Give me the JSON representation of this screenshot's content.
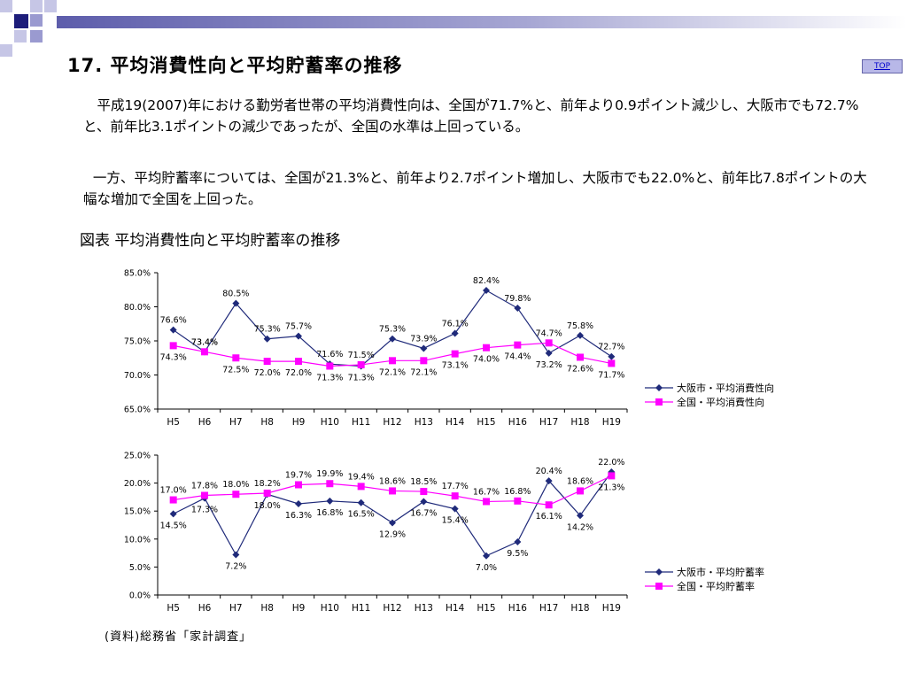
{
  "title": "17. 平均消費性向と平均貯蓄率の推移",
  "top_link": "TOP",
  "paragraph1": "平成19(2007)年における勤労者世帯の平均消費性向は、全国が71.7%と、前年より0.9ポイント減少し、大阪市でも72.7%と、前年比3.1ポイントの減少であったが、全国の水準は上回っている。",
  "paragraph2": "一方、平均貯蓄率については、全国が21.3%と、前年より2.7ポイント増加し、大阪市でも22.0%と、前年比7.8ポイントの大幅な増加で全国を上回った。",
  "figure_title": "図表 平均消費性向と平均貯蓄率の推移",
  "source": "(資料)総務省「家計調査」",
  "colors": {
    "osaka": "#1f2a7a",
    "national": "#ff00ff",
    "deco_dark": "#1d1d7a",
    "deco_light": "#9a9ad0"
  },
  "chart_data": [
    {
      "type": "line",
      "categories": [
        "H5",
        "H6",
        "H7",
        "H8",
        "H9",
        "H10",
        "H11",
        "H12",
        "H13",
        "H14",
        "H15",
        "H16",
        "H17",
        "H18",
        "H19"
      ],
      "y_tick_labels": [
        "65.0%",
        "70.0%",
        "75.0%",
        "80.0%",
        "85.0%"
      ],
      "ylim": [
        65,
        85
      ],
      "grid": false,
      "legend_position": "right",
      "series": [
        {
          "name": "大阪市・平均消費性向",
          "marker": "diamond",
          "values": [
            76.6,
            73.4,
            80.5,
            75.3,
            75.7,
            71.6,
            71.3,
            75.3,
            73.9,
            76.1,
            82.4,
            79.8,
            73.2,
            75.8,
            72.7
          ],
          "labels": [
            "76.6%",
            "73.4%",
            "80.5%",
            "75.3%",
            "75.7%",
            "71.6%",
            "71.3%",
            "75.3%",
            "73.9%",
            "76.1%",
            "82.4%",
            "79.8%",
            "73.2%",
            "75.8%",
            "72.7%"
          ]
        },
        {
          "name": "全国・平均消費性向",
          "marker": "square",
          "values": [
            74.3,
            73.4,
            72.5,
            72.0,
            72.0,
            71.3,
            71.5,
            72.1,
            72.1,
            73.1,
            74.0,
            74.4,
            74.7,
            72.6,
            71.7
          ],
          "labels": [
            "74.3%",
            "73.4%",
            "72.5%",
            "72.0%",
            "72.0%",
            "71.3%",
            "71.5%",
            "72.1%",
            "72.1%",
            "73.1%",
            "74.0%",
            "74.4%",
            "74.7%",
            "72.6%",
            "71.7%"
          ]
        }
      ]
    },
    {
      "type": "line",
      "categories": [
        "H5",
        "H6",
        "H7",
        "H8",
        "H9",
        "H10",
        "H11",
        "H12",
        "H13",
        "H14",
        "H15",
        "H16",
        "H17",
        "H18",
        "H19"
      ],
      "y_tick_labels": [
        "0.0%",
        "5.0%",
        "10.0%",
        "15.0%",
        "20.0%",
        "25.0%"
      ],
      "ylim": [
        0,
        25
      ],
      "grid": false,
      "legend_position": "right",
      "series": [
        {
          "name": "大阪市・平均貯蓄率",
          "marker": "diamond",
          "values": [
            14.5,
            17.3,
            7.2,
            18.0,
            16.3,
            16.8,
            16.5,
            12.9,
            16.7,
            15.4,
            7.0,
            9.5,
            20.4,
            14.2,
            22.0
          ],
          "labels": [
            "14.5%",
            "17.3%",
            "7.2%",
            "18.0%",
            "16.3%",
            "16.8%",
            "16.5%",
            "12.9%",
            "16.7%",
            "15.4%",
            "7.0%",
            "9.5%",
            "20.4%",
            "14.2%",
            "22.0%"
          ]
        },
        {
          "name": "全国・平均貯蓄率",
          "marker": "square",
          "values": [
            17.0,
            17.8,
            18.0,
            18.2,
            19.7,
            19.9,
            19.4,
            18.6,
            18.5,
            17.7,
            16.7,
            16.8,
            16.1,
            18.6,
            21.3
          ],
          "labels": [
            "17.0%",
            "17.8%",
            "18.0%",
            "18.2%",
            "19.7%",
            "19.9%",
            "19.4%",
            "18.6%",
            "18.5%",
            "17.7%",
            "16.7%",
            "16.8%",
            "16.1%",
            "18.6%",
            "21.3%"
          ]
        }
      ]
    }
  ]
}
